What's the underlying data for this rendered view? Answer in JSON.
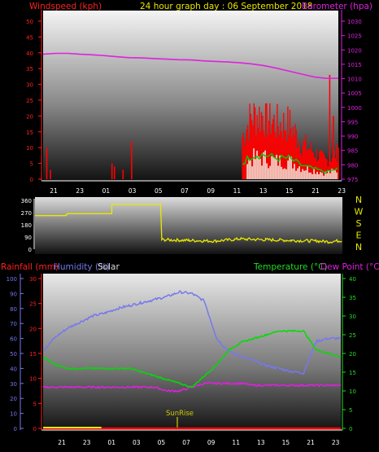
{
  "colors": {
    "wind": "#ff0000",
    "gust_fill": "#ff0000",
    "wind_avg": "#00cc00",
    "baro": "#dd22dd",
    "dir": "#e8e800",
    "rain": "#ff0000",
    "humidity": "#7777ee",
    "solar": "#dddddd",
    "temp": "#00dd00",
    "dew": "#dd22dd",
    "sun": "#cccc00",
    "axis": "#ffffff"
  },
  "header": {
    "windspeed_label": "Windspeed (kph)",
    "title": "24 hour graph day : 06 September 2018",
    "barometer_label": "Barometer (hpa)"
  },
  "panel3_labels": {
    "rainfall": "Rainfall (mm)",
    "humidity": "Humidity (%)",
    "solar": "Solar",
    "temperature": "Temperature (°C)",
    "dew_point": "Dew Point (°C)",
    "sunrise": "SunRise"
  },
  "x_ticks": [
    "21",
    "23",
    "01",
    "03",
    "05",
    "07",
    "09",
    "11",
    "13",
    "15",
    "21",
    "23"
  ],
  "chart_data": [
    {
      "type": "line",
      "title": "24 hour graph day : 06 September 2018",
      "y_left_label": "Windspeed (kph)",
      "y_left_ticks": [
        0,
        5,
        10,
        15,
        20,
        25,
        30,
        35,
        40,
        45,
        50
      ],
      "y_left_range": [
        0,
        50
      ],
      "y_right_label": "Barometer (hpa)",
      "y_right_ticks": [
        975,
        980,
        985,
        990,
        995,
        1000,
        1005,
        1010,
        1015,
        1020,
        1025,
        1030
      ],
      "y_right_range": [
        975,
        1030
      ],
      "series": [
        {
          "name": "Barometer (hpa)",
          "axis": "right",
          "x": [
            0,
            1,
            2,
            3,
            4,
            5,
            6,
            7,
            8,
            9,
            10,
            11,
            12,
            13,
            14,
            15,
            16,
            17,
            18,
            19,
            20,
            21,
            22,
            23,
            24
          ],
          "values": [
            1018.5,
            1018.8,
            1018.8,
            1018.5,
            1018.3,
            1018.0,
            1017.6,
            1017.3,
            1017.2,
            1017.0,
            1016.8,
            1016.6,
            1016.5,
            1016.2,
            1016.0,
            1015.8,
            1015.5,
            1015.1,
            1014.5,
            1013.6,
            1012.6,
            1011.6,
            1010.6,
            1010.1,
            1010.1
          ]
        },
        {
          "name": "Gust",
          "axis": "left",
          "x": [
            0.3,
            0.6,
            5.6,
            5.8,
            6.5,
            7.2,
            16.4,
            16.6,
            18.3,
            20.2,
            23.3,
            23.6,
            24.0
          ],
          "values": [
            10,
            3,
            5,
            4,
            3,
            12,
            5,
            11,
            9,
            7,
            33,
            20,
            10
          ]
        },
        {
          "name": "Wind",
          "axis": "left",
          "x": [
            0,
            1,
            2,
            3,
            4,
            5,
            6,
            7,
            8,
            9,
            10,
            11,
            12,
            13,
            14,
            15,
            16,
            17,
            18,
            19,
            20,
            21,
            22,
            23,
            24
          ],
          "values": [
            0,
            0,
            0,
            0,
            0,
            0,
            0,
            0,
            0,
            0,
            0,
            0,
            0,
            0,
            0,
            0,
            4,
            7,
            7,
            6,
            6,
            4,
            3,
            2,
            3
          ]
        }
      ]
    },
    {
      "type": "line",
      "y_ticks": [
        0,
        45,
        90,
        135,
        180,
        225,
        270,
        315,
        360
      ],
      "y_range": [
        0,
        360
      ],
      "right_ticks": [
        "N",
        "W",
        "S",
        "E",
        "N"
      ],
      "series": [
        {
          "name": "Wind direction",
          "x": [
            0,
            2.4,
            2.5,
            6.0,
            9.8,
            9.9,
            12,
            14,
            16,
            18,
            20,
            22,
            23,
            24
          ],
          "values": [
            248,
            252,
            262,
            330,
            330,
            70,
            65,
            60,
            75,
            70,
            65,
            60,
            55,
            65
          ]
        }
      ]
    },
    {
      "type": "line",
      "y_left_ticks": [
        0,
        10,
        20,
        30,
        40,
        50,
        60,
        70,
        80,
        90,
        100
      ],
      "y_left_range": [
        0,
        100
      ],
      "y_left2_ticks": [
        0,
        5,
        10,
        15,
        20,
        25,
        30
      ],
      "y_left2_range": [
        0,
        30
      ],
      "y_right_ticks": [
        0,
        5,
        10,
        15,
        20,
        25,
        30,
        35,
        40
      ],
      "y_right_range": [
        0,
        40
      ],
      "annotations": [
        "SunRise"
      ],
      "series": [
        {
          "name": "Humidity (%)",
          "axis": "left",
          "x": [
            0,
            1,
            2,
            3,
            4,
            5,
            6,
            7,
            8,
            9,
            10,
            11,
            12,
            13,
            14,
            15,
            16,
            17,
            18,
            19,
            20,
            21,
            22,
            23,
            24
          ],
          "values": [
            52,
            61,
            67,
            71,
            75,
            77,
            80,
            82,
            84,
            86,
            88,
            91,
            90,
            85,
            60,
            51,
            48,
            45,
            42,
            40,
            38,
            37,
            58,
            60,
            60
          ]
        },
        {
          "name": "Temperature (°C)",
          "axis": "right",
          "x": [
            0,
            1,
            2,
            3,
            4,
            5,
            6,
            7,
            8,
            9,
            10,
            11,
            12,
            13,
            14,
            15,
            16,
            17,
            18,
            19,
            20,
            21,
            22,
            23,
            24
          ],
          "values": [
            19,
            17,
            16,
            16,
            16,
            16,
            16,
            16,
            15,
            14,
            13,
            12,
            11,
            14,
            17,
            21,
            23,
            24,
            25,
            26,
            26,
            26,
            21,
            20,
            19
          ]
        },
        {
          "name": "Dew Point (°C)",
          "axis": "right",
          "x": [
            0,
            1,
            2,
            3,
            4,
            5,
            6,
            7,
            8,
            9,
            10,
            11,
            12,
            13,
            14,
            15,
            16,
            17,
            18,
            19,
            20,
            21,
            22,
            23,
            24
          ],
          "values": [
            11,
            11,
            11,
            11,
            11,
            11,
            11,
            11,
            11,
            11,
            10,
            10,
            11,
            12,
            12,
            12,
            12,
            11.5,
            11.5,
            11.5,
            11.5,
            11.5,
            11.5,
            11.5,
            11.5
          ]
        },
        {
          "name": "Rainfall (mm)",
          "axis": "left2",
          "x": [
            0,
            24
          ],
          "values": [
            0,
            0
          ]
        }
      ]
    }
  ]
}
